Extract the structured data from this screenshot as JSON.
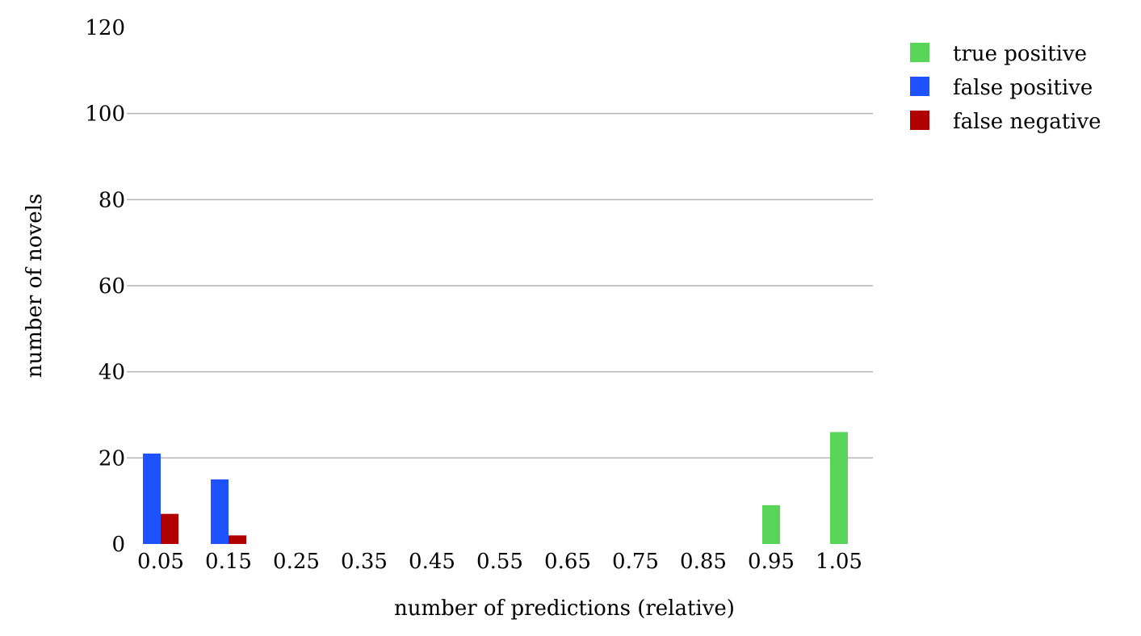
{
  "chart_data": {
    "type": "bar",
    "title": "",
    "xlabel": "number of predictions (relative)",
    "ylabel": "number of novels",
    "categories": [
      "0.05",
      "0.15",
      "0.25",
      "0.35",
      "0.45",
      "0.55",
      "0.65",
      "0.75",
      "0.85",
      "0.95",
      "1.05"
    ],
    "series": [
      {
        "name": "true positive",
        "color": "#59d65a",
        "values": [
          0,
          0,
          0,
          0,
          0,
          0,
          0,
          0,
          0,
          9,
          26
        ]
      },
      {
        "name": "false positive",
        "color": "#1f52ff",
        "values": [
          21,
          15,
          0,
          0,
          0,
          0,
          0,
          0,
          0,
          0,
          0
        ]
      },
      {
        "name": "false negative",
        "color": "#b00000",
        "values": [
          7,
          2,
          0,
          0,
          0,
          0,
          0,
          0,
          0,
          0,
          0
        ]
      }
    ],
    "ylim": [
      0,
      120
    ],
    "yticks": [
      0,
      20,
      40,
      60,
      80,
      100,
      120
    ],
    "grid": true,
    "gridlines": [
      20,
      40,
      60,
      80,
      100
    ],
    "legend_position": "top-right"
  }
}
